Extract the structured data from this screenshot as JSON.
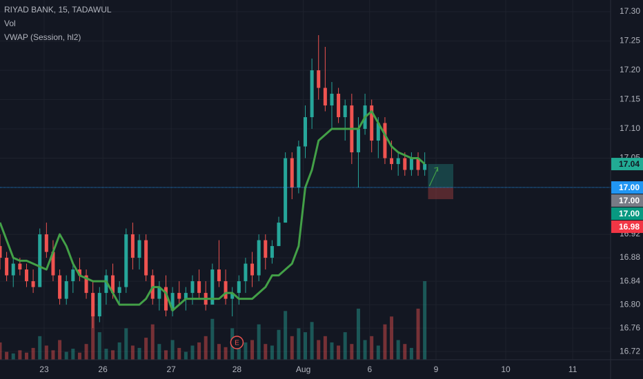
{
  "chart_data": {
    "type": "candlestick",
    "title": "RIYAD BANK, 15, TADAWUL",
    "indicators": [
      "Vol",
      "VWAP (Session, hl2)"
    ],
    "x": [
      0,
      1,
      2,
      3,
      4,
      5,
      6,
      7,
      8,
      9,
      10,
      11,
      12,
      13,
      14,
      15,
      16,
      17,
      18,
      19,
      20,
      21,
      22,
      23,
      24,
      25,
      26,
      27,
      28,
      29,
      30,
      31,
      32,
      33,
      34,
      35,
      36,
      37,
      38,
      39,
      40,
      41,
      42,
      43,
      44,
      45,
      46,
      47,
      48,
      49,
      50,
      51,
      52,
      53,
      54,
      55,
      56,
      57,
      58,
      59,
      60,
      61,
      62,
      63,
      64
    ],
    "open": [
      16.9,
      16.88,
      16.85,
      16.87,
      16.86,
      16.84,
      16.83,
      16.92,
      16.89,
      16.85,
      16.81,
      16.84,
      16.86,
      16.85,
      16.82,
      16.78,
      16.82,
      16.85,
      16.82,
      16.83,
      16.92,
      16.88,
      16.91,
      16.85,
      16.81,
      16.83,
      16.79,
      16.82,
      16.81,
      16.82,
      16.84,
      16.82,
      16.8,
      16.86,
      16.84,
      16.81,
      16.82,
      16.84,
      16.87,
      16.85,
      16.91,
      16.88,
      16.9,
      16.94,
      17.05,
      17.0,
      17.07,
      17.12,
      17.2,
      17.17,
      17.14,
      17.16,
      17.12,
      17.14,
      17.06,
      17.1,
      17.14,
      17.08,
      17.11,
      17.05,
      17.04,
      17.05,
      17.03,
      17.05,
      17.03
    ],
    "high": [
      16.92,
      16.89,
      16.88,
      16.88,
      16.87,
      16.86,
      16.93,
      16.94,
      16.91,
      16.86,
      16.85,
      16.87,
      16.88,
      16.86,
      16.84,
      16.83,
      16.86,
      16.87,
      16.84,
      16.93,
      16.94,
      16.92,
      16.92,
      16.86,
      16.84,
      16.85,
      16.83,
      16.84,
      16.83,
      16.85,
      16.86,
      16.84,
      16.87,
      16.91,
      16.86,
      16.83,
      16.85,
      16.88,
      16.89,
      16.92,
      16.92,
      16.91,
      16.95,
      17.06,
      17.06,
      17.08,
      17.14,
      17.22,
      17.26,
      17.24,
      17.18,
      17.17,
      17.15,
      17.16,
      17.12,
      17.16,
      17.15,
      17.12,
      17.12,
      17.08,
      17.06,
      17.06,
      17.06,
      17.06,
      17.06
    ],
    "low": [
      16.86,
      16.84,
      16.83,
      16.85,
      16.83,
      16.82,
      16.83,
      16.88,
      16.84,
      16.8,
      16.8,
      16.82,
      16.84,
      16.81,
      16.76,
      16.77,
      16.8,
      16.81,
      16.8,
      16.82,
      16.86,
      16.86,
      16.84,
      16.8,
      16.79,
      16.78,
      16.78,
      16.8,
      16.79,
      16.8,
      16.81,
      16.79,
      16.8,
      16.83,
      16.8,
      16.78,
      16.8,
      16.82,
      16.83,
      16.84,
      16.86,
      16.87,
      16.9,
      16.94,
      16.98,
      16.99,
      17.05,
      17.1,
      17.15,
      17.13,
      17.1,
      17.11,
      17.08,
      17.04,
      17.0,
      17.09,
      17.06,
      17.05,
      17.04,
      17.03,
      17.02,
      17.02,
      17.02,
      17.02,
      17.02
    ],
    "close": [
      16.88,
      16.85,
      16.87,
      16.86,
      16.84,
      16.83,
      16.92,
      16.89,
      16.85,
      16.81,
      16.84,
      16.86,
      16.85,
      16.82,
      16.78,
      16.82,
      16.85,
      16.82,
      16.83,
      16.92,
      16.88,
      16.91,
      16.85,
      16.81,
      16.83,
      16.79,
      16.82,
      16.81,
      16.82,
      16.84,
      16.82,
      16.8,
      16.86,
      16.84,
      16.81,
      16.82,
      16.84,
      16.87,
      16.85,
      16.91,
      16.88,
      16.9,
      16.94,
      17.05,
      17.0,
      17.07,
      17.12,
      17.2,
      17.17,
      17.14,
      17.16,
      17.12,
      17.14,
      17.06,
      17.1,
      17.14,
      17.08,
      17.11,
      17.05,
      17.04,
      17.05,
      17.03,
      17.05,
      17.03,
      17.04
    ],
    "volume": [
      22,
      10,
      8,
      12,
      9,
      15,
      30,
      18,
      12,
      25,
      10,
      14,
      9,
      20,
      60,
      35,
      14,
      12,
      22,
      40,
      18,
      15,
      28,
      45,
      20,
      12,
      25,
      15,
      10,
      18,
      22,
      30,
      52,
      20,
      16,
      40,
      18,
      22,
      25,
      45,
      20,
      18,
      38,
      62,
      30,
      40,
      35,
      48,
      25,
      30,
      22,
      18,
      35,
      20,
      65,
      25,
      30,
      18,
      45,
      55,
      25,
      20,
      15,
      65,
      100
    ],
    "vwap": [
      16.94,
      16.91,
      16.88,
      16.875,
      16.875,
      16.87,
      16.865,
      16.86,
      16.89,
      16.92,
      16.9,
      16.87,
      16.85,
      16.845,
      16.84,
      16.84,
      16.84,
      16.82,
      16.8,
      16.8,
      16.8,
      16.8,
      16.81,
      16.83,
      16.83,
      16.82,
      16.79,
      16.8,
      16.81,
      16.81,
      16.81,
      16.81,
      16.81,
      16.81,
      16.82,
      16.82,
      16.81,
      16.81,
      16.81,
      16.82,
      16.83,
      16.85,
      16.85,
      16.86,
      16.87,
      16.9,
      17.0,
      17.03,
      17.08,
      17.09,
      17.1,
      17.1,
      17.1,
      17.1,
      17.1,
      17.12,
      17.13,
      17.11,
      17.09,
      17.07,
      17.06,
      17.055,
      17.05,
      17.05,
      17.04
    ],
    "up_color": "#26a69a",
    "down_color": "#ef5350",
    "vwap_color": "#43a047",
    "xlim": [
      0,
      92
    ],
    "xticks": [
      {
        "value": 6.65,
        "label": "23"
      },
      {
        "value": 15.5,
        "label": "26"
      },
      {
        "value": 25.8,
        "label": "27"
      },
      {
        "value": 35.7,
        "label": "28"
      },
      {
        "value": 45.7,
        "label": "Aug"
      },
      {
        "value": 55.7,
        "label": "6"
      },
      {
        "value": 65.7,
        "label": "9"
      },
      {
        "value": 76.2,
        "label": "10"
      },
      {
        "value": 86.3,
        "label": "11"
      }
    ],
    "ylim": [
      16.706,
      17.32
    ],
    "yticks": [
      {
        "value": 17.3,
        "label": "17.30"
      },
      {
        "value": 17.25,
        "label": "17.25"
      },
      {
        "value": 17.2,
        "label": "17.20"
      },
      {
        "value": 17.15,
        "label": "17.15"
      },
      {
        "value": 17.1,
        "label": "17.10"
      },
      {
        "value": 17.05,
        "label": "17.05"
      },
      {
        "value": 16.92,
        "label": "16.92"
      },
      {
        "value": 16.88,
        "label": "16.88"
      },
      {
        "value": 16.84,
        "label": "16.84"
      },
      {
        "value": 16.8,
        "label": "16.80"
      },
      {
        "value": 16.76,
        "label": "16.76"
      },
      {
        "value": 16.72,
        "label": "16.72"
      }
    ],
    "grid": true,
    "price_line": {
      "value": 17.0,
      "color": "#2196f3"
    },
    "price_labels": [
      {
        "value": 17.04,
        "label": "17.04",
        "color": "#22ab94",
        "text_color": "#131722"
      },
      {
        "value": 17.0,
        "label": "17.00",
        "color": "#2196f3",
        "text_color": "#ffffff"
      },
      {
        "value": 17.0,
        "label": "17.00",
        "color": "#787b86",
        "text_color": "#ffffff"
      },
      {
        "value": 17.0,
        "label": "17.00",
        "color": "#089981",
        "text_color": "#ffffff"
      },
      {
        "value": 16.98,
        "label": "16.98",
        "color": "#f23645",
        "text_color": "#ffffff"
      }
    ],
    "position": {
      "entry": 17.0,
      "target": 17.04,
      "stop": 16.98,
      "x": [
        64.5,
        68.3
      ]
    },
    "earnings": {
      "x": 35.7,
      "label": "E"
    }
  }
}
